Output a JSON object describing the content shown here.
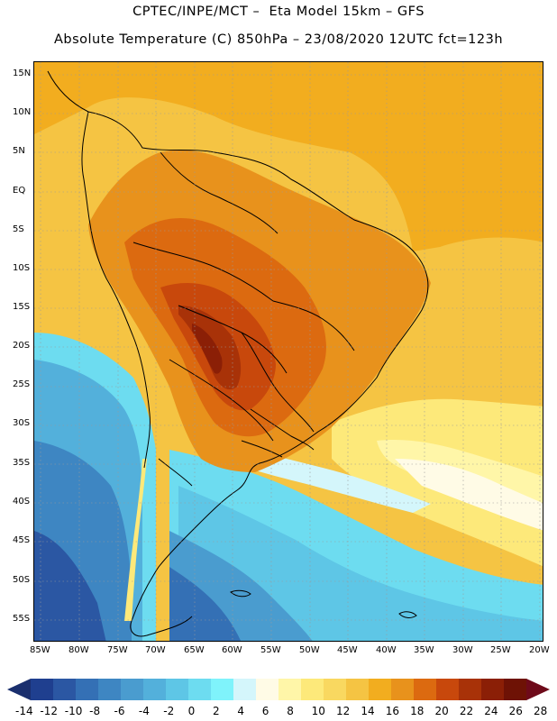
{
  "header": {
    "line1": "CPTEC/INPE/MCT –  Eta Model 15km – GFS",
    "line2": "Absolute Temperature (C) 850hPa – 23/08/2020 12UTC fct=123h"
  },
  "map": {
    "lat_labels": [
      "15N",
      "10N",
      "5N",
      "EQ",
      "5S",
      "10S",
      "15S",
      "20S",
      "25S",
      "30S",
      "35S",
      "40S",
      "45S",
      "50S",
      "55S"
    ],
    "lon_labels": [
      "85W",
      "80W",
      "75W",
      "70W",
      "65W",
      "60W",
      "55W",
      "50W",
      "45W",
      "40W",
      "35W",
      "30W",
      "25W",
      "20W"
    ],
    "region": "South America",
    "field": "temperature at 850hPa"
  },
  "colorbar": {
    "labels": [
      "-14",
      "-12",
      "-10",
      "-8",
      "-6",
      "-4",
      "-2",
      "0",
      "2",
      "4",
      "6",
      "8",
      "10",
      "12",
      "14",
      "16",
      "18",
      "20",
      "22",
      "24",
      "26",
      "28"
    ],
    "colors": [
      "#1f3f8f",
      "#2b57a3",
      "#3470b5",
      "#3e86c2",
      "#4a9ccf",
      "#53b0db",
      "#5ec6e6",
      "#6ddcf0",
      "#7ff3fb",
      "#d4f6fb",
      "#fffbe6",
      "#fff6a8",
      "#fde97a",
      "#f9d860",
      "#f5c443",
      "#f2ad1f",
      "#e8921c",
      "#dc6a10",
      "#c8480c",
      "#a83208",
      "#8b1f06",
      "#6e1205"
    ],
    "arrow_left_color": "#1a2f6e",
    "arrow_right_color": "#6e0a1a"
  }
}
